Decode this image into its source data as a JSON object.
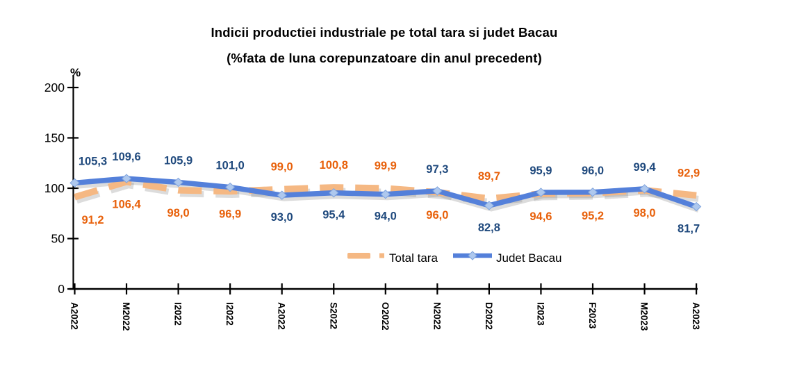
{
  "title": {
    "line1": "Indicii productiei industriale pe total tara si  judet Bacau",
    "line2": "(%fata de luna corepunzatoare din anul precedent)"
  },
  "chart_data": {
    "type": "line",
    "title": "Indicii productiei industriale pe total tara si judet Bacau (%fata de luna corepunzatoare din anul precedent)",
    "categories": [
      "A2022",
      "M2022",
      "I2022",
      "I2022",
      "A2022",
      "S2022",
      "O2022",
      "N2022",
      "D2022",
      "I2023",
      "F2023",
      "M2023",
      "A2023"
    ],
    "series": [
      {
        "name": "Total tara",
        "values": [
          91.2,
          106.4,
          98.0,
          96.9,
          99.0,
          100.8,
          99.9,
          96.0,
          89.7,
          94.6,
          95.2,
          98.0,
          92.9
        ],
        "point_labels": [
          "91,2",
          "106,4",
          "98,0",
          "96,9",
          "99,0",
          "100,8",
          "99,9",
          "96,0",
          "89,7",
          "94,6",
          "95,2",
          "98,0",
          "92,9"
        ],
        "line_style": "dashed",
        "marker": "none",
        "line_color": "#F5B883",
        "label_color": "#E8610B"
      },
      {
        "name": "Judet Bacau",
        "values": [
          105.3,
          109.6,
          105.9,
          101.0,
          93.0,
          95.4,
          94.0,
          97.3,
          82.8,
          95.9,
          96.0,
          99.4,
          81.7
        ],
        "point_labels": [
          "105,3",
          "109,6",
          "105,9",
          "101,0",
          "93,0",
          "95,4",
          "94,0",
          "97,3",
          "82,8",
          "95,9",
          "96,0",
          "99,4",
          "81,7"
        ],
        "line_style": "solid",
        "marker": "diamond",
        "line_color": "#5480DA",
        "marker_fill": "#AEC8EE",
        "marker_stroke": "#7FA3DC",
        "label_color": "#1F497D"
      }
    ],
    "ylabel": "%",
    "yticks": [
      0,
      50,
      100,
      150,
      200
    ],
    "ylim": [
      0,
      200
    ],
    "grid": false,
    "legend_position": "inside-bottom-center",
    "axis_color": "#000000"
  }
}
